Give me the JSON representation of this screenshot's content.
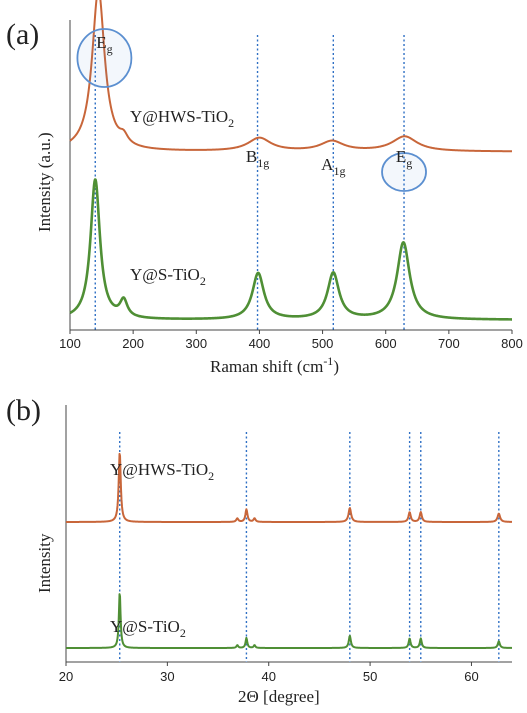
{
  "chart_data": [
    {
      "type": "line",
      "panel_label": "(a)",
      "xlabel": "Raman shift (cm",
      "xlabel_sup": "-1",
      "xlabel_end": ")",
      "ylabel": "Intensity  (a.u.)",
      "xlim": [
        100,
        800
      ],
      "xticks": [
        100,
        200,
        300,
        400,
        500,
        600,
        700,
        800
      ],
      "series": [
        {
          "name": "Y@HWS-TiO",
          "name_sub": "2",
          "color": "#c8663a",
          "baseline": 0.22,
          "peaks": [
            {
              "x": 145,
              "h": 0.98,
              "w": 12
            },
            {
              "x": 185,
              "h": 0.05,
              "w": 8
            },
            {
              "x": 400,
              "h": 0.08,
              "w": 22
            },
            {
              "x": 515,
              "h": 0.06,
              "w": 22
            },
            {
              "x": 630,
              "h": 0.09,
              "w": 24
            }
          ]
        },
        {
          "name": "Y@S-TiO",
          "name_sub": "2",
          "color": "#4f8f35",
          "baseline": 0.015,
          "peaks": [
            {
              "x": 140,
              "h": 1.0,
              "w": 9
            },
            {
              "x": 185,
              "h": 0.12,
              "w": 7
            },
            {
              "x": 398,
              "h": 0.33,
              "w": 11
            },
            {
              "x": 517,
              "h": 0.33,
              "w": 11
            },
            {
              "x": 628,
              "h": 0.55,
              "w": 12
            }
          ]
        }
      ],
      "reference_lines": [
        140,
        397,
        517,
        629
      ],
      "annotations": [
        {
          "base": "E",
          "sub": "g",
          "x": 145,
          "circled": true
        },
        {
          "base": "B",
          "sub": "1g",
          "x": 397,
          "circled": false
        },
        {
          "base": "A",
          "sub": "1g",
          "x": 517,
          "circled": false
        },
        {
          "base": "E",
          "sub": "g",
          "x": 629,
          "circled": true
        }
      ]
    },
    {
      "type": "line",
      "panel_label": "(b)",
      "xlabel": "2Θ [degree]",
      "ylabel": "Intensity",
      "xlim": [
        20,
        64
      ],
      "xticks": [
        20,
        30,
        40,
        50,
        60
      ],
      "series": [
        {
          "name": "Y@HWS-TiO",
          "name_sub": "2",
          "color": "#c8663a",
          "baseline": 0.0,
          "peaks": [
            {
              "x": 25.3,
              "h": 1.0,
              "w": 0.12
            },
            {
              "x": 36.9,
              "h": 0.05,
              "w": 0.12
            },
            {
              "x": 37.8,
              "h": 0.18,
              "w": 0.12
            },
            {
              "x": 38.6,
              "h": 0.05,
              "w": 0.12
            },
            {
              "x": 48.0,
              "h": 0.2,
              "w": 0.15
            },
            {
              "x": 53.9,
              "h": 0.14,
              "w": 0.13
            },
            {
              "x": 55.0,
              "h": 0.14,
              "w": 0.13
            },
            {
              "x": 62.7,
              "h": 0.12,
              "w": 0.15
            }
          ]
        },
        {
          "name": "Y@S-TiO",
          "name_sub": "2",
          "color": "#4f8f35",
          "baseline": 0.0,
          "peaks": [
            {
              "x": 25.3,
              "h": 1.0,
              "w": 0.1
            },
            {
              "x": 36.9,
              "h": 0.05,
              "w": 0.1
            },
            {
              "x": 37.8,
              "h": 0.18,
              "w": 0.1
            },
            {
              "x": 38.6,
              "h": 0.05,
              "w": 0.1
            },
            {
              "x": 48.0,
              "h": 0.22,
              "w": 0.12
            },
            {
              "x": 53.9,
              "h": 0.17,
              "w": 0.11
            },
            {
              "x": 55.0,
              "h": 0.17,
              "w": 0.11
            },
            {
              "x": 62.7,
              "h": 0.12,
              "w": 0.12
            }
          ]
        }
      ],
      "reference_lines": [
        25.3,
        37.8,
        48.0,
        53.9,
        55.0,
        62.7
      ]
    }
  ]
}
